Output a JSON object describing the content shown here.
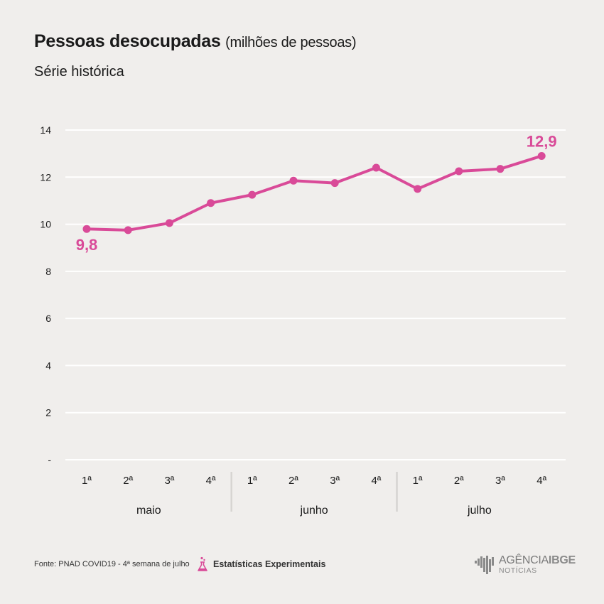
{
  "header": {
    "title": "Pessoas desocupadas",
    "title_unit": "(milhões de pessoas)",
    "subtitle": "Série histórica"
  },
  "chart_data": {
    "type": "line",
    "y_ticks": [
      "-",
      "2",
      "4",
      "6",
      "8",
      "10",
      "12",
      "14"
    ],
    "y_tick_values": [
      0,
      2,
      4,
      6,
      8,
      10,
      12,
      14
    ],
    "ylim": [
      0,
      14
    ],
    "grid": true,
    "categories": [
      "1ª",
      "2ª",
      "3ª",
      "4ª",
      "1ª",
      "2ª",
      "3ª",
      "4ª",
      "1ª",
      "2ª",
      "3ª",
      "4ª"
    ],
    "groups": [
      {
        "label": "maio",
        "count": 4
      },
      {
        "label": "junho",
        "count": 4
      },
      {
        "label": "julho",
        "count": 4
      }
    ],
    "series": [
      {
        "values": [
          9.8,
          9.75,
          10.05,
          10.9,
          11.25,
          11.85,
          11.75,
          12.4,
          11.5,
          12.25,
          12.35,
          12.9
        ]
      }
    ],
    "annotations": [
      {
        "index": 0,
        "text": "9,8",
        "placement": "below"
      },
      {
        "index": 11,
        "text": "12,9",
        "placement": "above"
      }
    ],
    "colors": {
      "line": "#d94a98",
      "grid": "#ffffff",
      "separator": "#d6d4d2",
      "text": "#1a1a1a"
    }
  },
  "footer": {
    "source": "Fonte: PNAD COVID19 - 4ª semana de julho",
    "experimental_label": "Estatísticas Experimentais",
    "experimental_icon": "flask-icon",
    "logo_name_regular": "AGÊNCIA",
    "logo_name_bold": "IBGE",
    "logo_sub": "NOTÍCIAS",
    "logo_icon": "ibge-bars-icon"
  }
}
